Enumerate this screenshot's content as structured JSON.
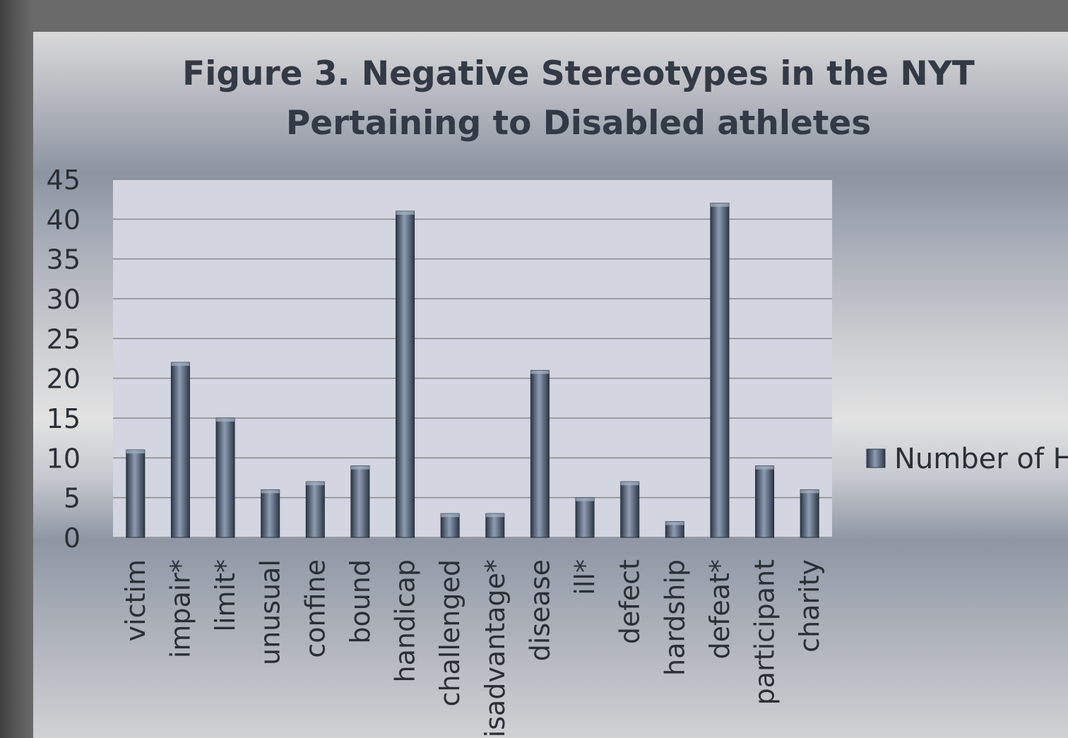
{
  "chart_data": {
    "type": "bar",
    "title": "Figure 3. Negative Stereotypes in the NYT Pertaining to Disabled athletes",
    "title_lines": [
      "Figure 3. Negative Stereotypes in the NYT",
      "Pertaining to Disabled athletes"
    ],
    "xlabel": "",
    "ylabel": "",
    "categories": [
      "victim",
      "impair*",
      "limit*",
      "unusual",
      "confine",
      "bound",
      "handicap",
      "challenged",
      "disadvantage*",
      "disease",
      "ill*",
      "defect",
      "hardship",
      "defeat*",
      "participant",
      "charity"
    ],
    "series": [
      {
        "name": "Number of H",
        "values": [
          11,
          22,
          15,
          6,
          7,
          9,
          41,
          3,
          3,
          21,
          5,
          7,
          2,
          42,
          9,
          6
        ]
      }
    ],
    "ylim": [
      0,
      45
    ],
    "yticks": [
      0,
      5,
      10,
      15,
      20,
      25,
      30,
      35,
      40,
      45
    ],
    "grid": true,
    "legend_position": "right",
    "colors": {
      "bar": "#4a5a6e",
      "plot_background": "#d3d5e0",
      "grid": "#8a8a8a"
    }
  }
}
